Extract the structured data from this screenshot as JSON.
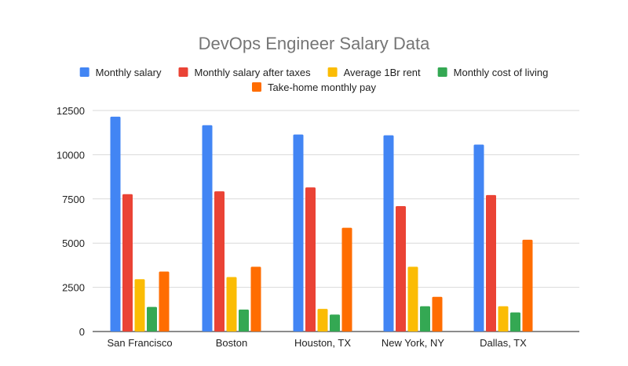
{
  "chart_data": {
    "type": "bar",
    "title": "DevOps Engineer Salary Data",
    "xlabel": "",
    "ylabel": "",
    "ylim": [
      0,
      12500
    ],
    "yticks": [
      0,
      2500,
      5000,
      7500,
      10000,
      12500
    ],
    "grid": true,
    "legend_position": "top",
    "categories": [
      "San Francisco",
      "Boston",
      "Houston, TX",
      "New York, NY",
      "Dallas, TX"
    ],
    "series": [
      {
        "name": "Monthly salary",
        "color": "#4285f4",
        "values": [
          12150,
          11670,
          11140,
          11100,
          10570
        ]
      },
      {
        "name": "Monthly salary after taxes",
        "color": "#ea4335",
        "values": [
          7770,
          7930,
          8150,
          7090,
          7720
        ]
      },
      {
        "name": "Average 1Br rent",
        "color": "#fbbc04",
        "values": [
          2960,
          3080,
          1280,
          3660,
          1430
        ]
      },
      {
        "name": "Monthly cost of living",
        "color": "#34a853",
        "values": [
          1390,
          1240,
          960,
          1430,
          1080
        ]
      },
      {
        "name": "Take-home monthly pay",
        "color": "#ff6d01",
        "values": [
          3390,
          3660,
          5870,
          1960,
          5190
        ]
      }
    ]
  }
}
